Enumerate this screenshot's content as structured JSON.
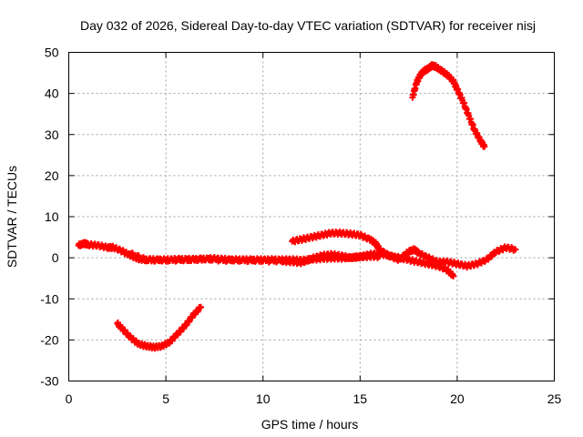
{
  "chart_data": {
    "type": "scatter",
    "title": "Day 032 of 2026, Sidereal Day-to-day VTEC variation (SDTVAR) for receiver nisj",
    "xlabel": "GPS time / hours",
    "ylabel": "SDTVAR / TECUs",
    "xlim": [
      0,
      25
    ],
    "ylim": [
      -30,
      50
    ],
    "xticks": [
      0,
      5,
      10,
      15,
      20,
      25
    ],
    "yticks": [
      -30,
      -20,
      -10,
      0,
      10,
      20,
      30,
      40,
      50
    ],
    "grid": true,
    "marker": "+",
    "color": "#ff0000",
    "series": [
      {
        "name": "trace-1",
        "x": [
          0.5,
          0.8,
          1.0,
          1.5,
          2.0,
          2.3,
          2.8,
          3.2,
          3.6,
          4.0,
          4.5,
          5.0,
          5.5,
          6.0,
          6.5,
          7.0,
          7.5,
          8.0,
          8.5,
          9.0,
          9.5,
          10.0,
          10.5,
          11.0,
          11.5,
          12.0,
          12.5,
          13.0,
          13.5,
          14.0,
          14.5,
          15.0,
          15.5,
          16.0
        ],
        "y": [
          3.0,
          3.5,
          3.2,
          3.0,
          2.5,
          2.5,
          1.5,
          0.5,
          -0.3,
          -0.5,
          -0.5,
          -0.5,
          -0.4,
          -0.4,
          -0.4,
          -0.3,
          -0.2,
          -0.4,
          -0.5,
          -0.5,
          -0.5,
          -0.5,
          -0.5,
          -0.5,
          -0.5,
          -0.6,
          -0.4,
          -0.2,
          -0.1,
          -0.1,
          0.0,
          0.2,
          0.3,
          0.3
        ]
      },
      {
        "name": "trace-2",
        "x": [
          3.2,
          4.0,
          5.0,
          6.0,
          7.0,
          8.0,
          9.0,
          10.0,
          11.0,
          11.5,
          12.0,
          12.5,
          13.0,
          13.5,
          14.0,
          14.5,
          15.0,
          15.5,
          16.0,
          16.5,
          17.0,
          17.5,
          17.8,
          18.0,
          18.5,
          19.0,
          19.5,
          20.0,
          20.5,
          21.0,
          21.5,
          22.0,
          22.5,
          23.0
        ],
        "y": [
          1.0,
          -0.5,
          -0.6,
          -0.5,
          -0.3,
          -0.6,
          -0.6,
          -0.7,
          -0.8,
          -1.0,
          -1.2,
          -0.2,
          0.5,
          0.8,
          0.5,
          0.0,
          0.3,
          0.8,
          1.0,
          0.5,
          -0.5,
          1.5,
          2.0,
          1.2,
          0.0,
          -1.0,
          -1.0,
          -1.5,
          -2.0,
          -1.5,
          -0.5,
          1.5,
          2.5,
          2.0
        ]
      },
      {
        "name": "trace-3",
        "x": [
          11.5,
          12.0,
          12.5,
          13.0,
          13.5,
          14.0,
          14.5,
          15.0,
          15.5,
          15.8,
          16.0,
          16.5,
          17.0,
          17.5,
          18.0,
          18.5,
          19.0,
          19.5,
          19.8
        ],
        "y": [
          4.0,
          4.5,
          5.0,
          5.5,
          6.0,
          6.0,
          5.8,
          5.5,
          4.5,
          3.5,
          2.0,
          0.5,
          0.0,
          -0.5,
          -1.0,
          -1.5,
          -2.0,
          -3.0,
          -4.5
        ]
      },
      {
        "name": "trace-4",
        "x": [
          2.5,
          2.8,
          3.2,
          3.6,
          4.0,
          4.4,
          4.8,
          5.2,
          5.6,
          6.0,
          6.4,
          6.8
        ],
        "y": [
          -16,
          -17.5,
          -19.5,
          -21,
          -21.5,
          -21.8,
          -21.5,
          -20.5,
          -18.5,
          -16.5,
          -14,
          -12
        ]
      },
      {
        "name": "trace-5",
        "x": [
          17.7,
          17.9,
          18.1,
          18.3,
          18.5,
          18.7,
          18.9,
          19.2,
          19.5,
          19.8,
          20.0,
          20.3,
          20.6,
          20.9,
          21.2,
          21.4
        ],
        "y": [
          39,
          42.5,
          44.5,
          45.5,
          46,
          46.8,
          46.5,
          45.5,
          44.5,
          43,
          41,
          38,
          34.5,
          31,
          28.5,
          27
        ]
      }
    ]
  }
}
